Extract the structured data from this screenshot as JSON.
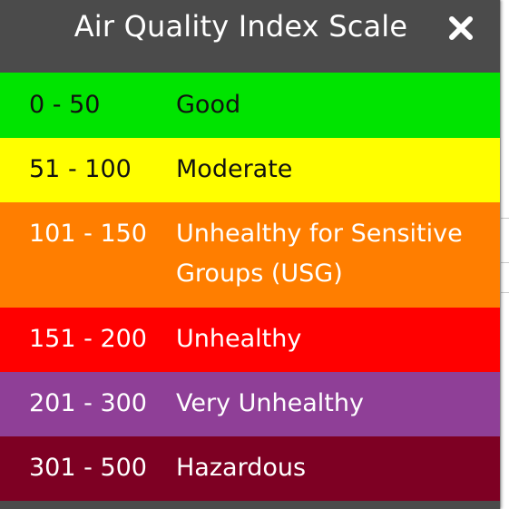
{
  "popup": {
    "title": "Air Quality Index Scale",
    "close_label": "close"
  },
  "rows": [
    {
      "range": "0 - 50",
      "label": "Good",
      "bg": "#00e400",
      "fg": "#111111"
    },
    {
      "range": "51 - 100",
      "label": "Moderate",
      "bg": "#ffff00",
      "fg": "#111111"
    },
    {
      "range": "101 - 150",
      "label": "Unhealthy for Sensitive Groups (USG)",
      "bg": "#ff7e00",
      "fg": "#ffffff"
    },
    {
      "range": "151 - 200",
      "label": "Unhealthy",
      "bg": "#ff0000",
      "fg": "#ffffff"
    },
    {
      "range": "201 - 300",
      "label": "Very Unhealthy",
      "bg": "#8f3f97",
      "fg": "#ffffff"
    },
    {
      "range": "301 - 500",
      "label": "Hazardous",
      "bg": "#7e0023",
      "fg": "#ffffff"
    }
  ],
  "colors": {
    "header": "#4b4b4b",
    "header_text": "#ffffff"
  }
}
